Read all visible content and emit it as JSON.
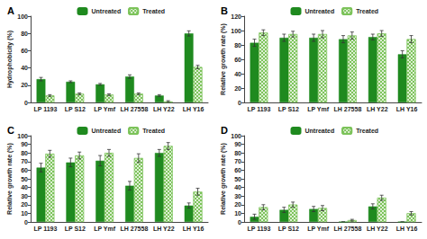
{
  "chart_data": [
    {
      "type": "bar",
      "title": "A",
      "y_label": "Hydrophobicity (%)",
      "categories": [
        "LP 1193",
        "LP S12",
        "LP Ymf",
        "LH 27558",
        "LH Y22",
        "LH Y16"
      ],
      "series": [
        {
          "name": "Untreated",
          "color": "#1f8a1f",
          "values": [
            27,
            24,
            21,
            30,
            8,
            80
          ],
          "errors": [
            2,
            1,
            1,
            2,
            1,
            3
          ]
        },
        {
          "name": "Treated",
          "color": "#7cc35a",
          "values": [
            8,
            10,
            9,
            10,
            1,
            41
          ],
          "errors": [
            1,
            1,
            1,
            1,
            1,
            2
          ]
        }
      ],
      "ylim": [
        0,
        100
      ],
      "yticks": [
        0,
        20,
        40,
        60,
        80,
        100
      ],
      "grid": false,
      "legend": "top"
    },
    {
      "type": "bar",
      "title": "B",
      "y_label": "Relative growth rate (%)",
      "categories": [
        "LP 1193",
        "LP S12",
        "LP Ymf",
        "LH 27558",
        "LH Y22",
        "LH Y16"
      ],
      "series": [
        {
          "name": "Untreated",
          "color": "#1f8a1f",
          "values": [
            83,
            90,
            90,
            88,
            91,
            67
          ],
          "errors": [
            5,
            5,
            5,
            5,
            4,
            5
          ]
        },
        {
          "name": "Treated",
          "color": "#7cc35a",
          "values": [
            97,
            95,
            95,
            93,
            96,
            88
          ],
          "errors": [
            4,
            4,
            5,
            5,
            4,
            5
          ]
        }
      ],
      "ylim": [
        0,
        120
      ],
      "yticks": [
        0,
        20,
        40,
        60,
        80,
        100,
        120
      ],
      "grid": false,
      "legend": "top"
    },
    {
      "type": "bar",
      "title": "C",
      "y_label": "Relative growth rate (%)",
      "categories": [
        "LP 1193",
        "LP S12",
        "LP Ymf",
        "LH 27558",
        "LH Y22",
        "LH Y16"
      ],
      "series": [
        {
          "name": "Untreated",
          "color": "#1f8a1f",
          "values": [
            63,
            69,
            71,
            42,
            80,
            19
          ],
          "errors": [
            5,
            5,
            6,
            5,
            4,
            3
          ]
        },
        {
          "name": "Treated",
          "color": "#7cc35a",
          "values": [
            79,
            77,
            80,
            74,
            88,
            35
          ],
          "errors": [
            4,
            4,
            4,
            5,
            4,
            4
          ]
        }
      ],
      "ylim": [
        0,
        100
      ],
      "yticks": [
        0,
        10,
        20,
        30,
        40,
        50,
        60,
        70,
        80,
        90,
        100
      ],
      "grid": false,
      "legend": "top"
    },
    {
      "type": "bar",
      "title": "D",
      "y_label": "Relative growth rate (%)",
      "categories": [
        "LP 1193",
        "LP S12",
        "LP Ymf",
        "LH 27558",
        "LH Y22",
        "LH Y16"
      ],
      "series": [
        {
          "name": "Untreated",
          "color": "#1f8a1f",
          "values": [
            6,
            14,
            15,
            0,
            18,
            0
          ],
          "errors": [
            3,
            3,
            3,
            0,
            3,
            0
          ]
        },
        {
          "name": "Treated",
          "color": "#7cc35a",
          "values": [
            17,
            20,
            16,
            2,
            28,
            10
          ],
          "errors": [
            3,
            3,
            3,
            1,
            3,
            2
          ]
        }
      ],
      "ylim": [
        0,
        100
      ],
      "yticks": [
        0,
        10,
        20,
        30,
        40,
        50,
        60,
        70,
        80,
        90,
        100
      ],
      "grid": false,
      "legend": "top"
    }
  ]
}
